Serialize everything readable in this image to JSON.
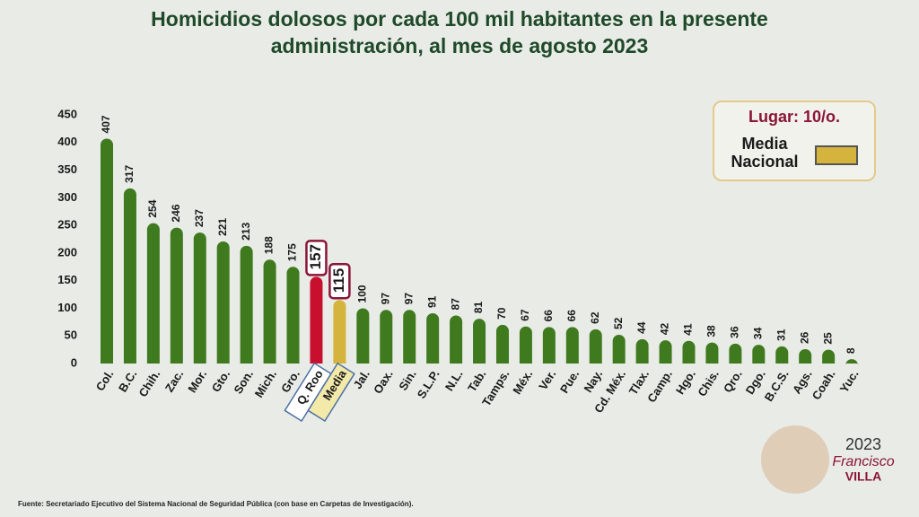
{
  "chart_data": {
    "type": "bar",
    "title": "Homicidios dolosos por cada 100 mil habitantes en la presente administración, al mes de agosto 2023",
    "categories": [
      "Col.",
      "B.C.",
      "Chih.",
      "Zac.",
      "Mor.",
      "Gto.",
      "Son.",
      "Mich.",
      "Gro.",
      "Q. Roo",
      "Media",
      "Jal.",
      "Oax.",
      "Sin.",
      "S.L.P.",
      "N.L.",
      "Tab.",
      "Tamps.",
      "Méx.",
      "Ver.",
      "Pue.",
      "Nay.",
      "Cd. Méx.",
      "Tlax.",
      "Camp.",
      "Hgo.",
      "Chis.",
      "Qro.",
      "Dgo.",
      "B.C.S.",
      "Ags.",
      "Coah.",
      "Yuc."
    ],
    "values": [
      407,
      317,
      254,
      246,
      237,
      221,
      213,
      188,
      175,
      157,
      115,
      100,
      97,
      97,
      91,
      87,
      81,
      70,
      67,
      66,
      66,
      62,
      52,
      44,
      42,
      41,
      38,
      36,
      34,
      31,
      26,
      25,
      8
    ],
    "colors": [
      "#3f7a1f",
      "#3f7a1f",
      "#3f7a1f",
      "#3f7a1f",
      "#3f7a1f",
      "#3f7a1f",
      "#3f7a1f",
      "#3f7a1f",
      "#3f7a1f",
      "#c8102e",
      "#d4b43c",
      "#3f7a1f",
      "#3f7a1f",
      "#3f7a1f",
      "#3f7a1f",
      "#3f7a1f",
      "#3f7a1f",
      "#3f7a1f",
      "#3f7a1f",
      "#3f7a1f",
      "#3f7a1f",
      "#3f7a1f",
      "#3f7a1f",
      "#3f7a1f",
      "#3f7a1f",
      "#3f7a1f",
      "#3f7a1f",
      "#3f7a1f",
      "#3f7a1f",
      "#3f7a1f",
      "#3f7a1f",
      "#3f7a1f",
      "#3f7a1f"
    ],
    "ylim": [
      0,
      450
    ],
    "yticks": [
      0,
      50,
      100,
      150,
      200,
      250,
      300,
      350,
      400,
      450
    ],
    "grid": false,
    "legend_title": "Lugar: 10/o.",
    "legend_label": "Media Nacional",
    "legend_color": "#d4b43c",
    "source": "Fuente:  Secretariado Ejecutivo del Sistema Nacional de Seguridad Pública (con base en Carpetas de Investigación).",
    "logo": {
      "year": "2023",
      "name": "Francisco",
      "surname": "VILLA"
    }
  }
}
